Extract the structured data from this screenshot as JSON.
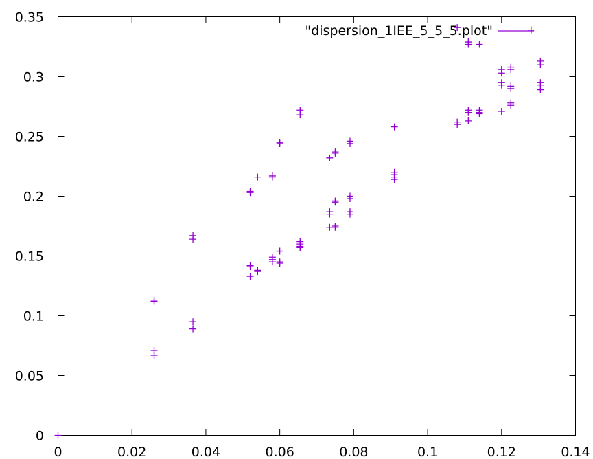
{
  "chart_data": {
    "type": "scatter",
    "title": "",
    "xlabel": "",
    "ylabel": "",
    "xlim": [
      0,
      0.14
    ],
    "ylim": [
      0,
      0.35
    ],
    "x_ticks": [
      0,
      0.02,
      0.04,
      0.06,
      0.08,
      0.1,
      0.12,
      0.14
    ],
    "x_tick_labels": [
      "0",
      "0.02",
      "0.04",
      "0.06",
      "0.08",
      "0.1",
      "0.12",
      "0.14"
    ],
    "y_ticks": [
      0,
      0.05,
      0.1,
      0.15,
      0.2,
      0.25,
      0.3,
      0.35
    ],
    "y_tick_labels": [
      "0",
      "0.05",
      "0.1",
      "0.15",
      "0.2",
      "0.25",
      "0.3",
      "0.35"
    ],
    "grid": false,
    "legend_position": "top-right",
    "marker": "plus",
    "series": [
      {
        "name": "\"dispersion_1IEE_5_5_5.plot\"",
        "color": "#9400d3",
        "points": [
          [
            0,
            0
          ],
          [
            0.026,
            0.112
          ],
          [
            0.026,
            0.113
          ],
          [
            0.026,
            0.071
          ],
          [
            0.026,
            0.067
          ],
          [
            0.0365,
            0.167
          ],
          [
            0.0365,
            0.164
          ],
          [
            0.0365,
            0.095
          ],
          [
            0.0365,
            0.089
          ],
          [
            0.052,
            0.204
          ],
          [
            0.052,
            0.203
          ],
          [
            0.052,
            0.142
          ],
          [
            0.052,
            0.141
          ],
          [
            0.052,
            0.133
          ],
          [
            0.054,
            0.216
          ],
          [
            0.054,
            0.138
          ],
          [
            0.054,
            0.137
          ],
          [
            0.058,
            0.217
          ],
          [
            0.058,
            0.216
          ],
          [
            0.058,
            0.149
          ],
          [
            0.058,
            0.147
          ],
          [
            0.058,
            0.145
          ],
          [
            0.06,
            0.245
          ],
          [
            0.06,
            0.244
          ],
          [
            0.06,
            0.154
          ],
          [
            0.06,
            0.145
          ],
          [
            0.06,
            0.144
          ],
          [
            0.0655,
            0.272
          ],
          [
            0.0655,
            0.268
          ],
          [
            0.0655,
            0.162
          ],
          [
            0.0655,
            0.16
          ],
          [
            0.0655,
            0.158
          ],
          [
            0.0655,
            0.157
          ],
          [
            0.0735,
            0.232
          ],
          [
            0.0735,
            0.187
          ],
          [
            0.0735,
            0.185
          ],
          [
            0.0735,
            0.174
          ],
          [
            0.075,
            0.237
          ],
          [
            0.075,
            0.236
          ],
          [
            0.075,
            0.196
          ],
          [
            0.075,
            0.195
          ],
          [
            0.075,
            0.175
          ],
          [
            0.075,
            0.174
          ],
          [
            0.079,
            0.246
          ],
          [
            0.079,
            0.244
          ],
          [
            0.079,
            0.2
          ],
          [
            0.079,
            0.198
          ],
          [
            0.079,
            0.187
          ],
          [
            0.079,
            0.185
          ],
          [
            0.091,
            0.258
          ],
          [
            0.091,
            0.22
          ],
          [
            0.091,
            0.218
          ],
          [
            0.091,
            0.216
          ],
          [
            0.091,
            0.214
          ],
          [
            0.108,
            0.341
          ],
          [
            0.108,
            0.262
          ],
          [
            0.108,
            0.26
          ],
          [
            0.111,
            0.329
          ],
          [
            0.111,
            0.327
          ],
          [
            0.111,
            0.272
          ],
          [
            0.111,
            0.27
          ],
          [
            0.111,
            0.263
          ],
          [
            0.114,
            0.327
          ],
          [
            0.114,
            0.272
          ],
          [
            0.114,
            0.27
          ],
          [
            0.114,
            0.269
          ],
          [
            0.12,
            0.306
          ],
          [
            0.12,
            0.303
          ],
          [
            0.12,
            0.295
          ],
          [
            0.12,
            0.293
          ],
          [
            0.12,
            0.271
          ],
          [
            0.1225,
            0.308
          ],
          [
            0.1225,
            0.306
          ],
          [
            0.1225,
            0.292
          ],
          [
            0.1225,
            0.29
          ],
          [
            0.1225,
            0.278
          ],
          [
            0.1225,
            0.276
          ],
          [
            0.128,
            0.339
          ],
          [
            0.1305,
            0.313
          ],
          [
            0.1305,
            0.31
          ],
          [
            0.1305,
            0.295
          ],
          [
            0.1305,
            0.293
          ],
          [
            0.1305,
            0.289
          ]
        ]
      }
    ]
  }
}
